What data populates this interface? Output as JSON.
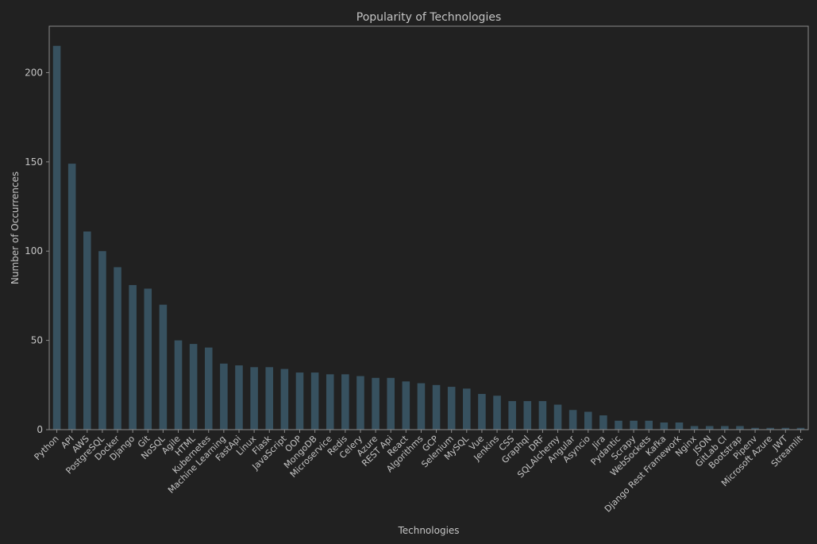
{
  "chart_data": {
    "type": "bar",
    "title": "Popularity of Technologies",
    "xlabel": "Technologies",
    "ylabel": "Number of Occurrences",
    "ylim": [
      0,
      226
    ],
    "yticks": [
      0,
      50,
      100,
      150,
      200
    ],
    "grid": false,
    "categories": [
      "Python",
      "API",
      "AWS",
      "PostgreSQL",
      "Docker",
      "Django",
      "Git",
      "NoSQL",
      "Agile",
      "HTML",
      "Kubernetes",
      "Machine Learning",
      "FastApi",
      "Linux",
      "Flask",
      "JavaScript",
      "OOP",
      "MongoDB",
      "Microservice",
      "Redis",
      "Celery",
      "Azure",
      "REST Api",
      "React",
      "Algorithms",
      "GCP",
      "Selenium",
      "MySQL",
      "Vue",
      "Jenkins",
      "CSS",
      "Graphql",
      "DRF",
      "SQLAlchemy",
      "Angular",
      "Asyncio",
      "Jira",
      "Pydantic",
      "Scrapy",
      "WebSockets",
      "Kafka",
      "Django Rest Framework",
      "Nginx",
      "JSON",
      "GitLab CI",
      "Bootstrap",
      "Pipenv",
      "Microsoft Azure",
      "JWT",
      "Streamlit"
    ],
    "values": [
      215,
      149,
      111,
      100,
      91,
      81,
      79,
      70,
      50,
      48,
      46,
      37,
      36,
      35,
      35,
      34,
      32,
      32,
      31,
      31,
      30,
      29,
      29,
      27,
      26,
      25,
      24,
      23,
      20,
      19,
      16,
      16,
      16,
      14,
      11,
      10,
      8,
      5,
      5,
      5,
      4,
      4,
      2,
      2,
      2,
      2,
      1,
      1,
      1,
      1
    ],
    "colors": {
      "background": "#212121",
      "bar": "#37515f",
      "text": "#c4c4c4",
      "axis": "#8c8c8c"
    }
  }
}
